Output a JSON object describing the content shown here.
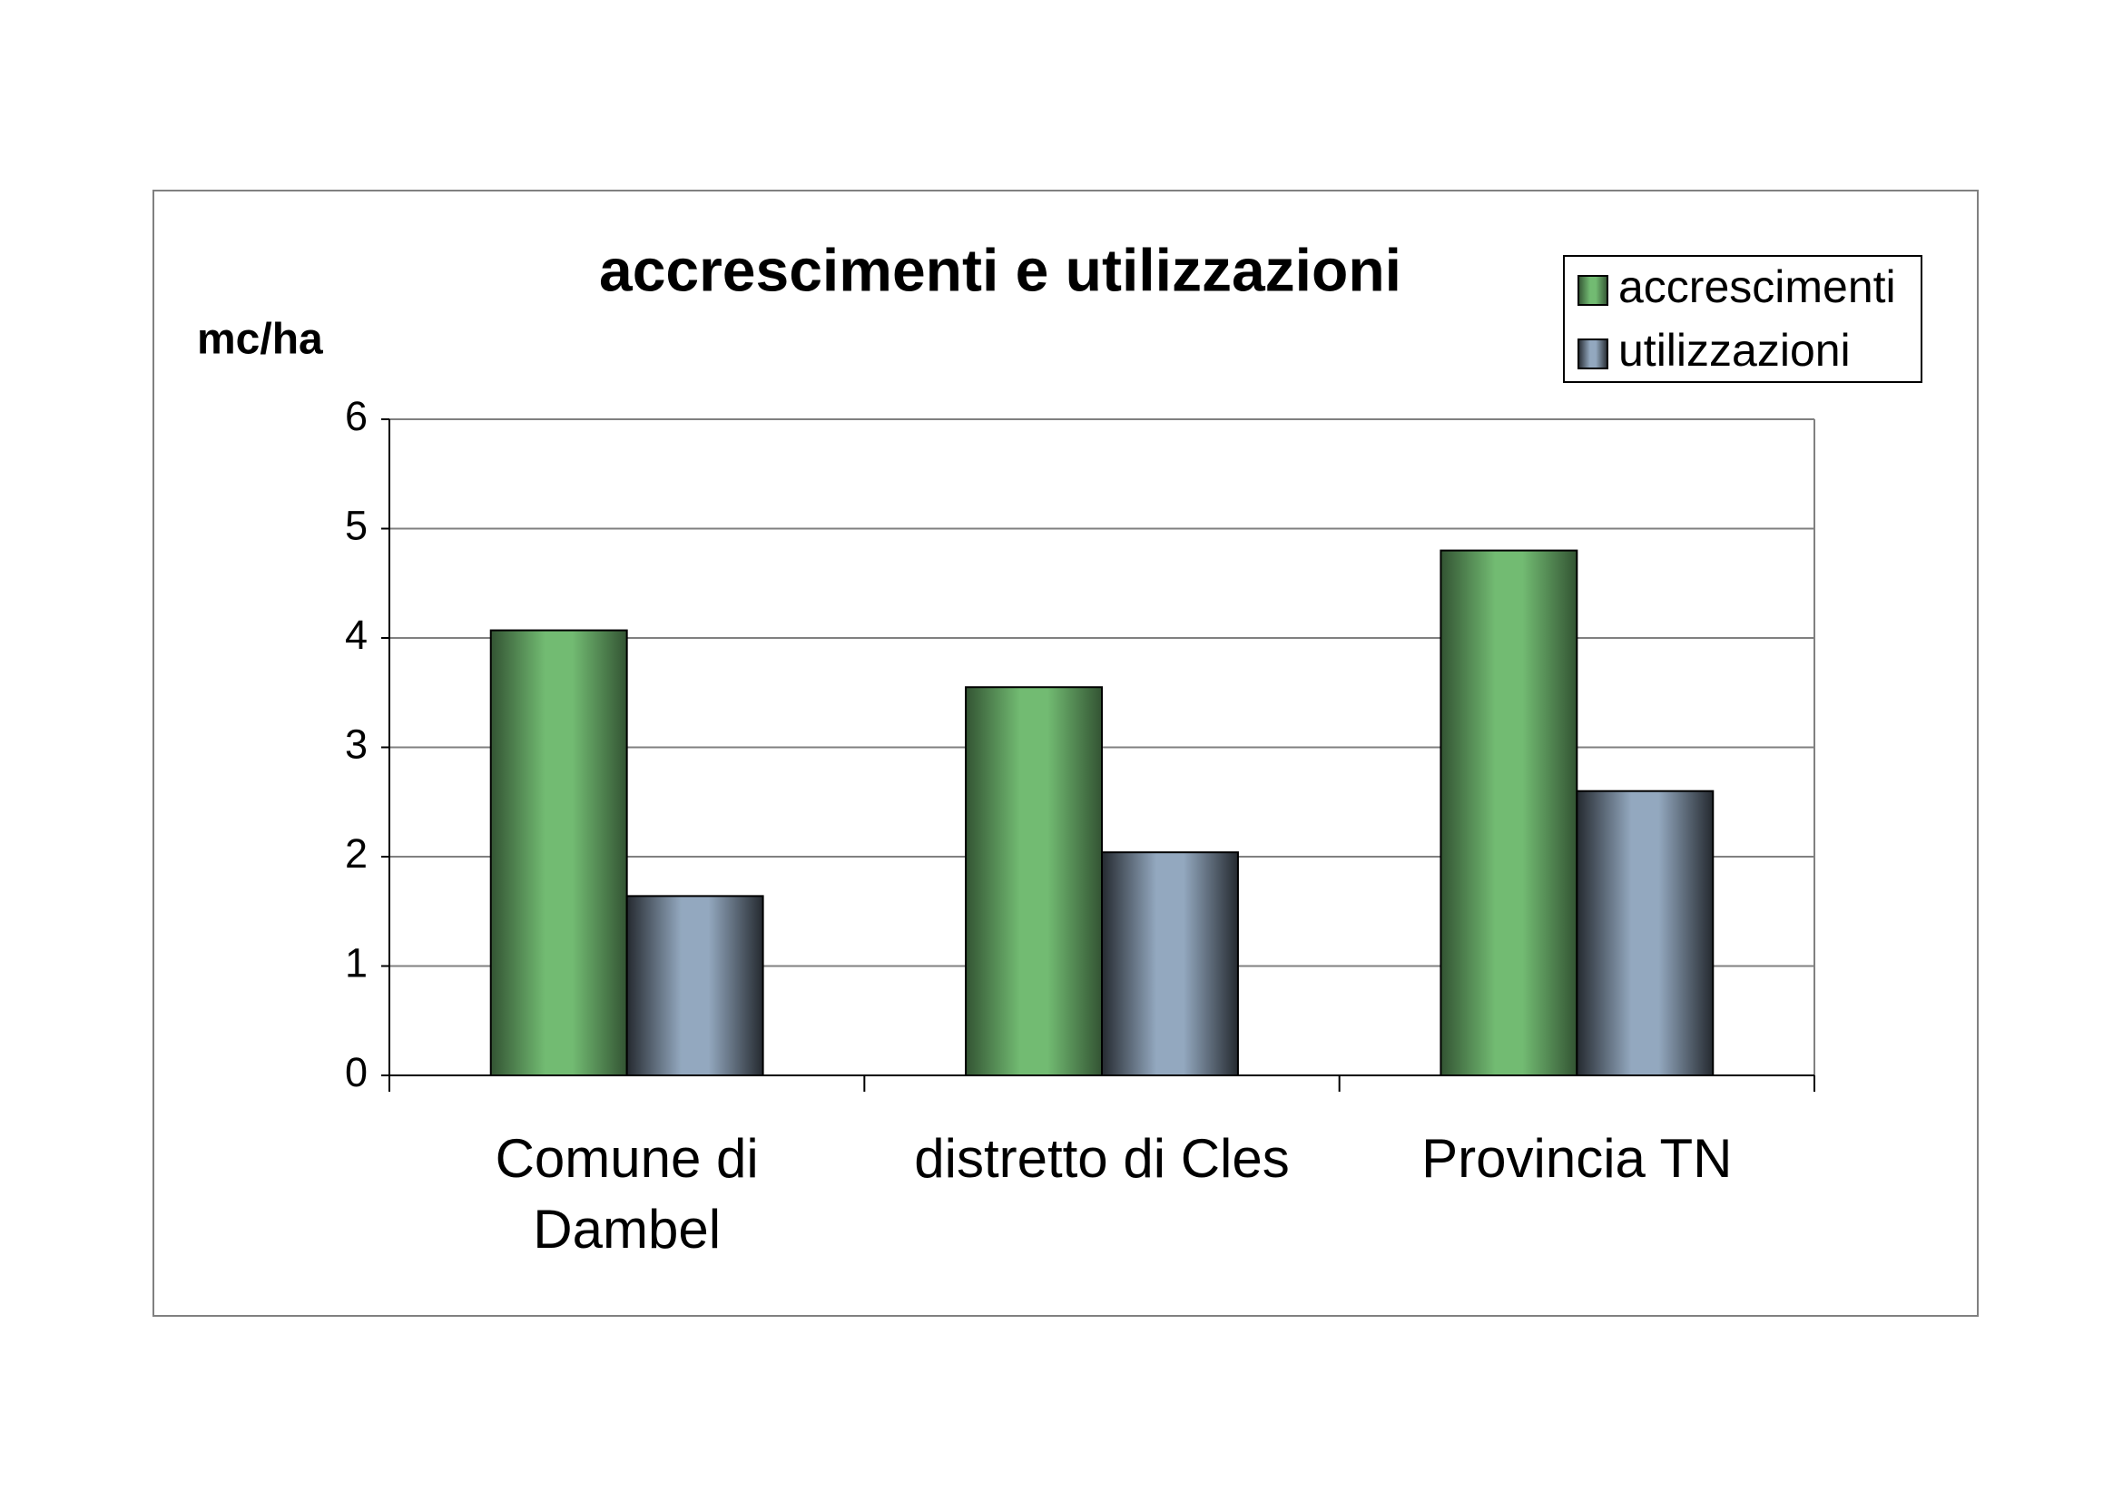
{
  "chart_data": {
    "type": "bar",
    "title": "accrescimenti e utilizzazioni",
    "y_label": "mc/ha",
    "categories": [
      "Comune di Dambel",
      "distretto di Cles",
      "Provincia TN"
    ],
    "series": [
      {
        "name": "accrescimenti",
        "color": "#72bb72",
        "values": [
          4.07,
          3.55,
          4.8
        ]
      },
      {
        "name": "utilizzazioni",
        "color": "#93a8bf",
        "values": [
          1.64,
          2.04,
          2.6
        ]
      }
    ],
    "ylim": [
      0,
      6
    ],
    "yticks": [
      0,
      1,
      2,
      3,
      4,
      5,
      6
    ],
    "grid": true,
    "legend": "top-right"
  }
}
